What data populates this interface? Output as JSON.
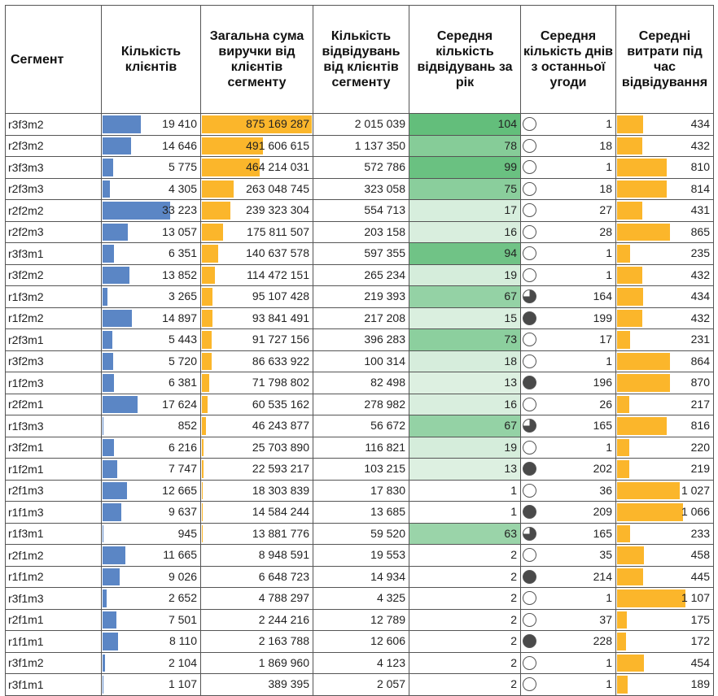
{
  "headers": [
    "Сегмент",
    "Кількість клієнтів",
    "Загальна сума виручки від клієнтів сегменту",
    "Кількість відвідувань від клієнтів сегменту",
    "Середня кількість відвідувань за рік",
    "Середня кількість днів з останньої угоди",
    "Середні витрати під час відвідування"
  ],
  "colors": {
    "blue_bar": "#5b86c5",
    "orange_bar": "#fbb62b",
    "green_dark": "#63be7b",
    "green_light": "#eef7f0",
    "pie_dark": "#4a4a4a"
  },
  "rows": [
    {
      "seg": "r3f3m2",
      "clients": 19410,
      "clients_t": "19 410",
      "revenue": 875169287,
      "revenue_t": "875 169 287",
      "visits_t": "2 015 039",
      "avg_visits": 104,
      "avg_visits_t": "104",
      "days": 1,
      "days_t": "1",
      "pie": "empty",
      "spend": 434,
      "spend_t": "434"
    },
    {
      "seg": "r2f3m2",
      "clients": 14646,
      "clients_t": "14 646",
      "revenue": 491606615,
      "revenue_t": "491 606 615",
      "visits_t": "1 137 350",
      "avg_visits": 78,
      "avg_visits_t": "78",
      "days": 18,
      "days_t": "18",
      "pie": "empty",
      "spend": 432,
      "spend_t": "432"
    },
    {
      "seg": "r3f3m3",
      "clients": 5775,
      "clients_t": "5 775",
      "revenue": 464214031,
      "revenue_t": "464 214 031",
      "visits_t": "572 786",
      "avg_visits": 99,
      "avg_visits_t": "99",
      "days": 1,
      "days_t": "1",
      "pie": "empty",
      "spend": 810,
      "spend_t": "810"
    },
    {
      "seg": "r2f3m3",
      "clients": 4305,
      "clients_t": "4 305",
      "revenue": 263048745,
      "revenue_t": "263 048 745",
      "visits_t": "323 058",
      "avg_visits": 75,
      "avg_visits_t": "75",
      "days": 18,
      "days_t": "18",
      "pie": "empty",
      "spend": 814,
      "spend_t": "814"
    },
    {
      "seg": "r2f2m2",
      "clients": 33223,
      "clients_t": "33 223",
      "revenue": 239323304,
      "revenue_t": "239 323 304",
      "visits_t": "554 713",
      "avg_visits": 17,
      "avg_visits_t": "17",
      "days": 27,
      "days_t": "27",
      "pie": "empty",
      "spend": 431,
      "spend_t": "431"
    },
    {
      "seg": "r2f2m3",
      "clients": 13057,
      "clients_t": "13 057",
      "revenue": 175811507,
      "revenue_t": "175 811 507",
      "visits_t": "203 158",
      "avg_visits": 16,
      "avg_visits_t": "16",
      "days": 28,
      "days_t": "28",
      "pie": "empty",
      "spend": 865,
      "spend_t": "865"
    },
    {
      "seg": "r3f3m1",
      "clients": 6351,
      "clients_t": "6 351",
      "revenue": 140637578,
      "revenue_t": "140 637 578",
      "visits_t": "597 355",
      "avg_visits": 94,
      "avg_visits_t": "94",
      "days": 1,
      "days_t": "1",
      "pie": "empty",
      "spend": 235,
      "spend_t": "235"
    },
    {
      "seg": "r3f2m2",
      "clients": 13852,
      "clients_t": "13 852",
      "revenue": 114472151,
      "revenue_t": "114 472 151",
      "visits_t": "265 234",
      "avg_visits": 19,
      "avg_visits_t": "19",
      "days": 1,
      "days_t": "1",
      "pie": "empty",
      "spend": 432,
      "spend_t": "432"
    },
    {
      "seg": "r1f3m2",
      "clients": 3265,
      "clients_t": "3 265",
      "revenue": 95107428,
      "revenue_t": "95 107 428",
      "visits_t": "219 393",
      "avg_visits": 67,
      "avg_visits_t": "67",
      "days": 164,
      "days_t": "164",
      "pie": "three-quarter",
      "spend": 434,
      "spend_t": "434"
    },
    {
      "seg": "r1f2m2",
      "clients": 14897,
      "clients_t": "14 897",
      "revenue": 93841491,
      "revenue_t": "93 841 491",
      "visits_t": "217 208",
      "avg_visits": 15,
      "avg_visits_t": "15",
      "days": 199,
      "days_t": "199",
      "pie": "full",
      "spend": 432,
      "spend_t": "432"
    },
    {
      "seg": "r2f3m1",
      "clients": 5443,
      "clients_t": "5 443",
      "revenue": 91727156,
      "revenue_t": "91 727 156",
      "visits_t": "396 283",
      "avg_visits": 73,
      "avg_visits_t": "73",
      "days": 17,
      "days_t": "17",
      "pie": "empty",
      "spend": 231,
      "spend_t": "231"
    },
    {
      "seg": "r3f2m3",
      "clients": 5720,
      "clients_t": "5 720",
      "revenue": 86633922,
      "revenue_t": "86 633 922",
      "visits_t": "100 314",
      "avg_visits": 18,
      "avg_visits_t": "18",
      "days": 1,
      "days_t": "1",
      "pie": "empty",
      "spend": 864,
      "spend_t": "864"
    },
    {
      "seg": "r1f2m3",
      "clients": 6381,
      "clients_t": "6 381",
      "revenue": 71798802,
      "revenue_t": "71 798 802",
      "visits_t": "82 498",
      "avg_visits": 13,
      "avg_visits_t": "13",
      "days": 196,
      "days_t": "196",
      "pie": "full",
      "spend": 870,
      "spend_t": "870"
    },
    {
      "seg": "r2f2m1",
      "clients": 17624,
      "clients_t": "17 624",
      "revenue": 60535162,
      "revenue_t": "60 535 162",
      "visits_t": "278 982",
      "avg_visits": 16,
      "avg_visits_t": "16",
      "days": 26,
      "days_t": "26",
      "pie": "empty",
      "spend": 217,
      "spend_t": "217"
    },
    {
      "seg": "r1f3m3",
      "clients": 852,
      "clients_t": "852",
      "revenue": 46243877,
      "revenue_t": "46 243 877",
      "visits_t": "56 672",
      "avg_visits": 67,
      "avg_visits_t": "67",
      "days": 165,
      "days_t": "165",
      "pie": "three-quarter",
      "spend": 816,
      "spend_t": "816"
    },
    {
      "seg": "r3f2m1",
      "clients": 6216,
      "clients_t": "6 216",
      "revenue": 25703890,
      "revenue_t": "25 703 890",
      "visits_t": "116 821",
      "avg_visits": 19,
      "avg_visits_t": "19",
      "days": 1,
      "days_t": "1",
      "pie": "empty",
      "spend": 220,
      "spend_t": "220"
    },
    {
      "seg": "r1f2m1",
      "clients": 7747,
      "clients_t": "7 747",
      "revenue": 22593217,
      "revenue_t": "22 593 217",
      "visits_t": "103 215",
      "avg_visits": 13,
      "avg_visits_t": "13",
      "days": 202,
      "days_t": "202",
      "pie": "full",
      "spend": 219,
      "spend_t": "219"
    },
    {
      "seg": "r2f1m3",
      "clients": 12665,
      "clients_t": "12 665",
      "revenue": 18303839,
      "revenue_t": "18 303 839",
      "visits_t": "17 830",
      "avg_visits": 1,
      "avg_visits_t": "1",
      "days": 36,
      "days_t": "36",
      "pie": "empty",
      "spend": 1027,
      "spend_t": "1 027"
    },
    {
      "seg": "r1f1m3",
      "clients": 9637,
      "clients_t": "9 637",
      "revenue": 14584244,
      "revenue_t": "14 584 244",
      "visits_t": "13 685",
      "avg_visits": 1,
      "avg_visits_t": "1",
      "days": 209,
      "days_t": "209",
      "pie": "full",
      "spend": 1066,
      "spend_t": "1 066"
    },
    {
      "seg": "r1f3m1",
      "clients": 945,
      "clients_t": "945",
      "revenue": 13881776,
      "revenue_t": "13 881 776",
      "visits_t": "59 520",
      "avg_visits": 63,
      "avg_visits_t": "63",
      "days": 165,
      "days_t": "165",
      "pie": "three-quarter",
      "spend": 233,
      "spend_t": "233"
    },
    {
      "seg": "r2f1m2",
      "clients": 11665,
      "clients_t": "11 665",
      "revenue": 8948591,
      "revenue_t": "8 948 591",
      "visits_t": "19 553",
      "avg_visits": 2,
      "avg_visits_t": "2",
      "days": 35,
      "days_t": "35",
      "pie": "empty",
      "spend": 458,
      "spend_t": "458"
    },
    {
      "seg": "r1f1m2",
      "clients": 9026,
      "clients_t": "9 026",
      "revenue": 6648723,
      "revenue_t": "6 648 723",
      "visits_t": "14 934",
      "avg_visits": 2,
      "avg_visits_t": "2",
      "days": 214,
      "days_t": "214",
      "pie": "full",
      "spend": 445,
      "spend_t": "445"
    },
    {
      "seg": "r3f1m3",
      "clients": 2652,
      "clients_t": "2 652",
      "revenue": 4788297,
      "revenue_t": "4 788 297",
      "visits_t": "4 325",
      "avg_visits": 2,
      "avg_visits_t": "2",
      "days": 1,
      "days_t": "1",
      "pie": "empty",
      "spend": 1107,
      "spend_t": "1 107"
    },
    {
      "seg": "r2f1m1",
      "clients": 7501,
      "clients_t": "7 501",
      "revenue": 2244216,
      "revenue_t": "2 244 216",
      "visits_t": "12 789",
      "avg_visits": 2,
      "avg_visits_t": "2",
      "days": 37,
      "days_t": "37",
      "pie": "empty",
      "spend": 175,
      "spend_t": "175"
    },
    {
      "seg": "r1f1m1",
      "clients": 8110,
      "clients_t": "8 110",
      "revenue": 2163788,
      "revenue_t": "2 163 788",
      "visits_t": "12 606",
      "avg_visits": 2,
      "avg_visits_t": "2",
      "days": 228,
      "days_t": "228",
      "pie": "full",
      "spend": 172,
      "spend_t": "172"
    },
    {
      "seg": "r3f1m2",
      "clients": 2104,
      "clients_t": "2 104",
      "revenue": 1869960,
      "revenue_t": "1 869 960",
      "visits_t": "4 123",
      "avg_visits": 2,
      "avg_visits_t": "2",
      "days": 1,
      "days_t": "1",
      "pie": "empty",
      "spend": 454,
      "spend_t": "454"
    },
    {
      "seg": "r3f1m1",
      "clients": 1107,
      "clients_t": "1 107",
      "revenue": 389395,
      "revenue_t": "389 395",
      "visits_t": "2 057",
      "avg_visits": 2,
      "avg_visits_t": "2",
      "days": 1,
      "days_t": "1",
      "pie": "empty",
      "spend": 189,
      "spend_t": "189"
    }
  ]
}
